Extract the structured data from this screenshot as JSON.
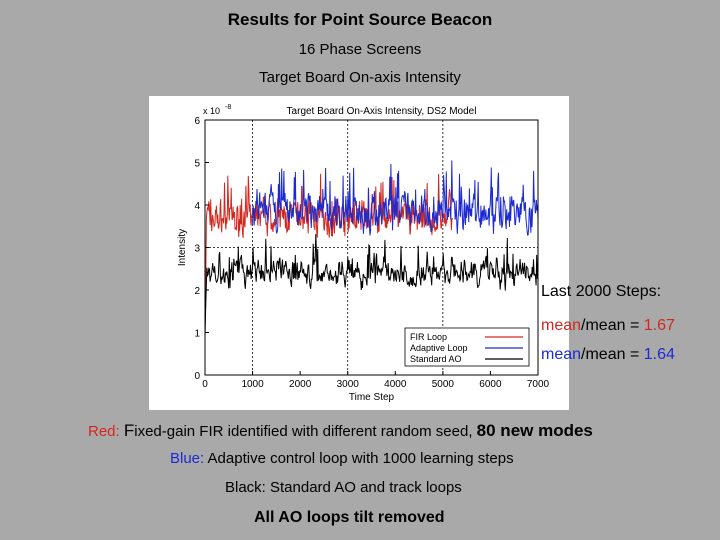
{
  "slide": {
    "title": "Results for Point Source Beacon",
    "subtitle1": "16 Phase Screens",
    "subtitle2": "Target Board On-axis Intensity",
    "stats_heading": "Last 2000 Steps:",
    "stat_word_a": "mean",
    "stat_word_b": "/mean = ",
    "stat1_value": "1.67",
    "stat2_value": "1.64",
    "note_red_label": "Red:",
    "note_red_text": "ixed-gain FIR identified with different random seed,",
    "note_red_cap": "F",
    "note_red_emph": "80 new modes",
    "note_blue_label": "Blue:",
    "note_blue_text": "Adaptive control loop with 1000 learning steps",
    "note_black": "Black: Standard AO and track loops",
    "footer": "All AO loops tilt removed"
  },
  "colors": {
    "red": "#d0281e",
    "blue": "#1c2ad0",
    "black": "#000000"
  },
  "chart_data": {
    "type": "line",
    "title": "Target Board On-Axis Intensity, DS2 Model",
    "xlabel": "Time Step",
    "ylabel": "Intensity",
    "y_multiplier_base": "x 10",
    "y_multiplier_exp": "-8",
    "xlim": [
      0,
      7000
    ],
    "ylim": [
      0,
      6
    ],
    "xticks": [
      0,
      1000,
      2000,
      3000,
      4000,
      5000,
      6000,
      7000
    ],
    "yticks": [
      0,
      1,
      2,
      3,
      4,
      5,
      6
    ],
    "grid_dashed_y": [
      3
    ],
    "grid_dashed_x": [
      1000,
      3000,
      5000
    ],
    "legend_position": "bottom-right",
    "series": [
      {
        "name": "FIR Loop",
        "color": "#d0281e",
        "start": 0,
        "end": 5200,
        "mean": 3.7,
        "amp": 0.55
      },
      {
        "name": "Adaptive Loop",
        "color": "#1c2ad0",
        "start": 1000,
        "end": 7000,
        "mean": 3.85,
        "amp": 0.6
      },
      {
        "name": "Standard AO",
        "color": "#000000",
        "start": 0,
        "end": 7000,
        "mean": 2.4,
        "amp": 0.45
      }
    ]
  }
}
